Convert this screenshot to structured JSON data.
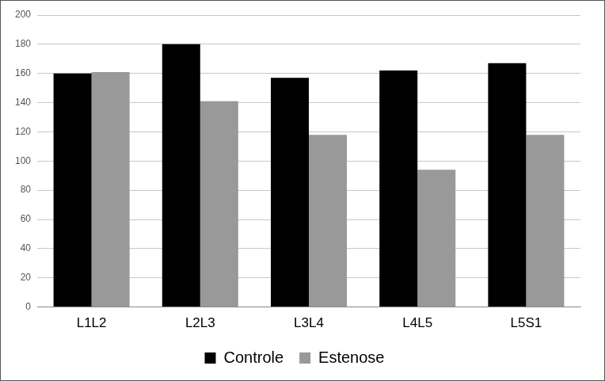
{
  "chart_data": {
    "type": "bar",
    "categories": [
      "L1L2",
      "L2L3",
      "L3L4",
      "L4L5",
      "L5S1"
    ],
    "series": [
      {
        "name": "Controle",
        "color": "#000000",
        "values": [
          160,
          180,
          157,
          162,
          167
        ]
      },
      {
        "name": "Estenose",
        "color": "#999999",
        "values": [
          161,
          141,
          118,
          94,
          118
        ]
      }
    ],
    "ylim": [
      0,
      200
    ],
    "yticks": [
      0,
      20,
      40,
      60,
      80,
      100,
      120,
      140,
      160,
      180,
      200
    ],
    "grid": true,
    "legend": "bottom"
  }
}
